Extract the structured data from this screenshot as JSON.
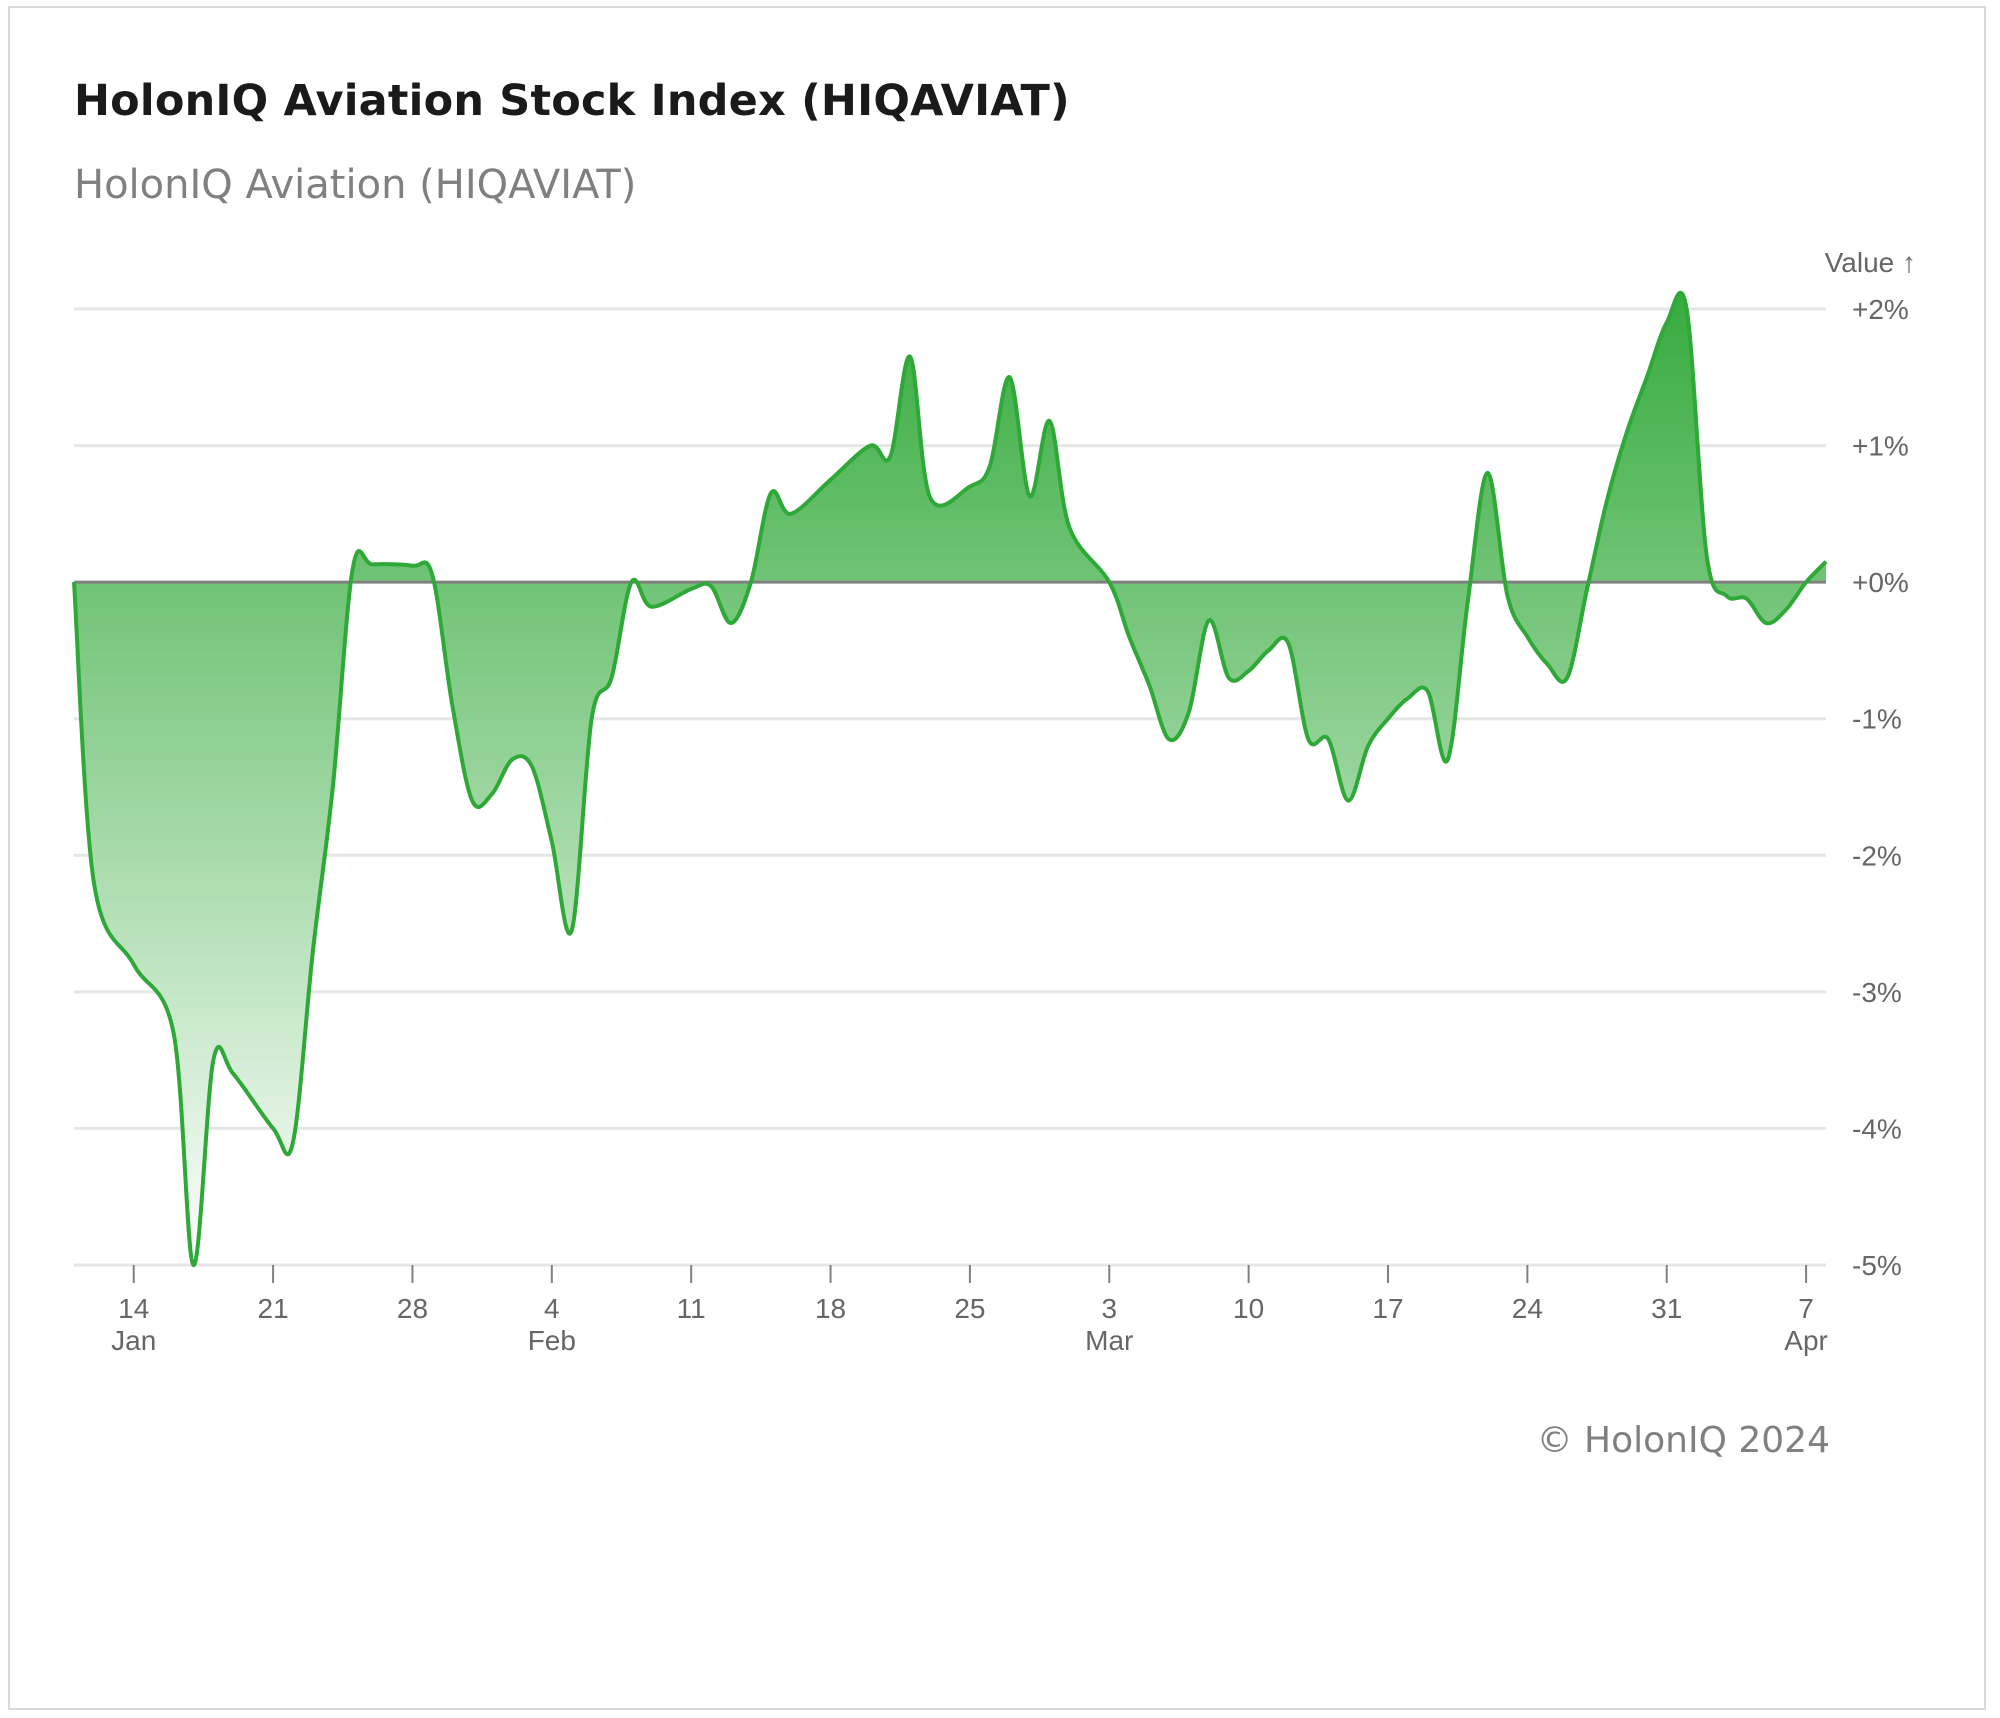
{
  "header": {
    "title": "HolonIQ Aviation Stock Index (HIQAVIAT)",
    "subtitle": "HolonIQ Aviation (HIQAVIAT)"
  },
  "footer": {
    "credit": "© HolonIQ 2024"
  },
  "colors": {
    "line": "#2ea836",
    "fill_top": "#2ea836",
    "fill_bottom": "#ffffff",
    "zero_line": "#808080",
    "grid": "#e6e6e6"
  },
  "chart_data": {
    "type": "area",
    "title": "HolonIQ Aviation Stock Index (HIQAVIAT)",
    "subtitle": "HolonIQ Aviation (HIQAVIAT)",
    "xlabel": "",
    "ylabel": "Value ↑",
    "ylim": [
      -5,
      2
    ],
    "y_ticks": [
      {
        "value": 2,
        "label": "+2%"
      },
      {
        "value": 1,
        "label": "+1%"
      },
      {
        "value": 0,
        "label": "+0%"
      },
      {
        "value": -1,
        "label": "-1%"
      },
      {
        "value": -2,
        "label": "-2%"
      },
      {
        "value": -3,
        "label": "-3%"
      },
      {
        "value": -4,
        "label": "-4%"
      },
      {
        "value": -5,
        "label": "-5%"
      }
    ],
    "x_domain": [
      "2024-01-11",
      "2024-04-08"
    ],
    "x_ticks": [
      {
        "date": "2024-01-14",
        "label": "14",
        "month": "Jan"
      },
      {
        "date": "2024-01-21",
        "label": "21",
        "month": ""
      },
      {
        "date": "2024-01-28",
        "label": "28",
        "month": ""
      },
      {
        "date": "2024-02-04",
        "label": "4",
        "month": "Feb"
      },
      {
        "date": "2024-02-11",
        "label": "11",
        "month": ""
      },
      {
        "date": "2024-02-18",
        "label": "18",
        "month": ""
      },
      {
        "date": "2024-02-25",
        "label": "25",
        "month": ""
      },
      {
        "date": "2024-03-03",
        "label": "3",
        "month": "Mar"
      },
      {
        "date": "2024-03-10",
        "label": "10",
        "month": ""
      },
      {
        "date": "2024-03-17",
        "label": "17",
        "month": ""
      },
      {
        "date": "2024-03-24",
        "label": "24",
        "month": ""
      },
      {
        "date": "2024-03-31",
        "label": "31",
        "month": ""
      },
      {
        "date": "2024-04-07",
        "label": "7",
        "month": "Apr"
      }
    ],
    "series": [
      {
        "name": "HolonIQ Aviation (HIQAVIAT)",
        "points": [
          [
            "2024-01-11",
            0.0
          ],
          [
            "2024-01-12",
            -2.2
          ],
          [
            "2024-01-14",
            -2.8
          ],
          [
            "2024-01-16",
            -3.3
          ],
          [
            "2024-01-17",
            -5.0
          ],
          [
            "2024-01-18",
            -3.5
          ],
          [
            "2024-01-19",
            -3.6
          ],
          [
            "2024-01-21",
            -4.0
          ],
          [
            "2024-01-22",
            -4.1
          ],
          [
            "2024-01-23",
            -2.7
          ],
          [
            "2024-01-24",
            -1.5
          ],
          [
            "2024-01-25",
            0.1
          ],
          [
            "2024-01-26",
            0.13
          ],
          [
            "2024-01-28",
            0.12
          ],
          [
            "2024-01-29",
            0.05
          ],
          [
            "2024-01-30",
            -0.9
          ],
          [
            "2024-01-31",
            -1.6
          ],
          [
            "2024-02-01",
            -1.55
          ],
          [
            "2024-02-02",
            -1.3
          ],
          [
            "2024-02-03",
            -1.35
          ],
          [
            "2024-02-04",
            -1.9
          ],
          [
            "2024-02-05",
            -2.55
          ],
          [
            "2024-02-06",
            -1.0
          ],
          [
            "2024-02-07",
            -0.7
          ],
          [
            "2024-02-08",
            0.0
          ],
          [
            "2024-02-09",
            -0.18
          ],
          [
            "2024-02-11",
            -0.05
          ],
          [
            "2024-02-12",
            -0.03
          ],
          [
            "2024-02-13",
            -0.3
          ],
          [
            "2024-02-14",
            0.0
          ],
          [
            "2024-02-15",
            0.65
          ],
          [
            "2024-02-16",
            0.5
          ],
          [
            "2024-02-18",
            0.75
          ],
          [
            "2024-02-20",
            1.0
          ],
          [
            "2024-02-21",
            0.92
          ],
          [
            "2024-02-22",
            1.65
          ],
          [
            "2024-02-23",
            0.62
          ],
          [
            "2024-02-25",
            0.7
          ],
          [
            "2024-02-26",
            0.85
          ],
          [
            "2024-02-27",
            1.5
          ],
          [
            "2024-02-28",
            0.63
          ],
          [
            "2024-02-29",
            1.18
          ],
          [
            "2024-03-01",
            0.4
          ],
          [
            "2024-03-03",
            0.0
          ],
          [
            "2024-03-04",
            -0.4
          ],
          [
            "2024-03-05",
            -0.75
          ],
          [
            "2024-03-06",
            -1.15
          ],
          [
            "2024-03-07",
            -0.95
          ],
          [
            "2024-03-08",
            -0.28
          ],
          [
            "2024-03-09",
            -0.7
          ],
          [
            "2024-03-10",
            -0.65
          ],
          [
            "2024-03-11",
            -0.5
          ],
          [
            "2024-03-12",
            -0.45
          ],
          [
            "2024-03-13",
            -1.15
          ],
          [
            "2024-03-14",
            -1.15
          ],
          [
            "2024-03-15",
            -1.6
          ],
          [
            "2024-03-16",
            -1.2
          ],
          [
            "2024-03-17",
            -1.0
          ],
          [
            "2024-03-18",
            -0.85
          ],
          [
            "2024-03-19",
            -0.8
          ],
          [
            "2024-03-20",
            -1.3
          ],
          [
            "2024-03-21",
            -0.15
          ],
          [
            "2024-03-22",
            0.8
          ],
          [
            "2024-03-23",
            -0.1
          ],
          [
            "2024-03-24",
            -0.4
          ],
          [
            "2024-03-25",
            -0.6
          ],
          [
            "2024-03-26",
            -0.7
          ],
          [
            "2024-03-27",
            -0.05
          ],
          [
            "2024-03-28",
            0.6
          ],
          [
            "2024-03-29",
            1.1
          ],
          [
            "2024-03-30",
            1.5
          ],
          [
            "2024-03-31",
            1.9
          ],
          [
            "2024-04-01",
            2.0
          ],
          [
            "2024-04-02",
            0.2
          ],
          [
            "2024-04-03",
            -0.1
          ],
          [
            "2024-04-04",
            -0.12
          ],
          [
            "2024-04-05",
            -0.3
          ],
          [
            "2024-04-06",
            -0.2
          ],
          [
            "2024-04-07",
            0.0
          ],
          [
            "2024-04-08",
            0.15
          ]
        ]
      }
    ]
  }
}
